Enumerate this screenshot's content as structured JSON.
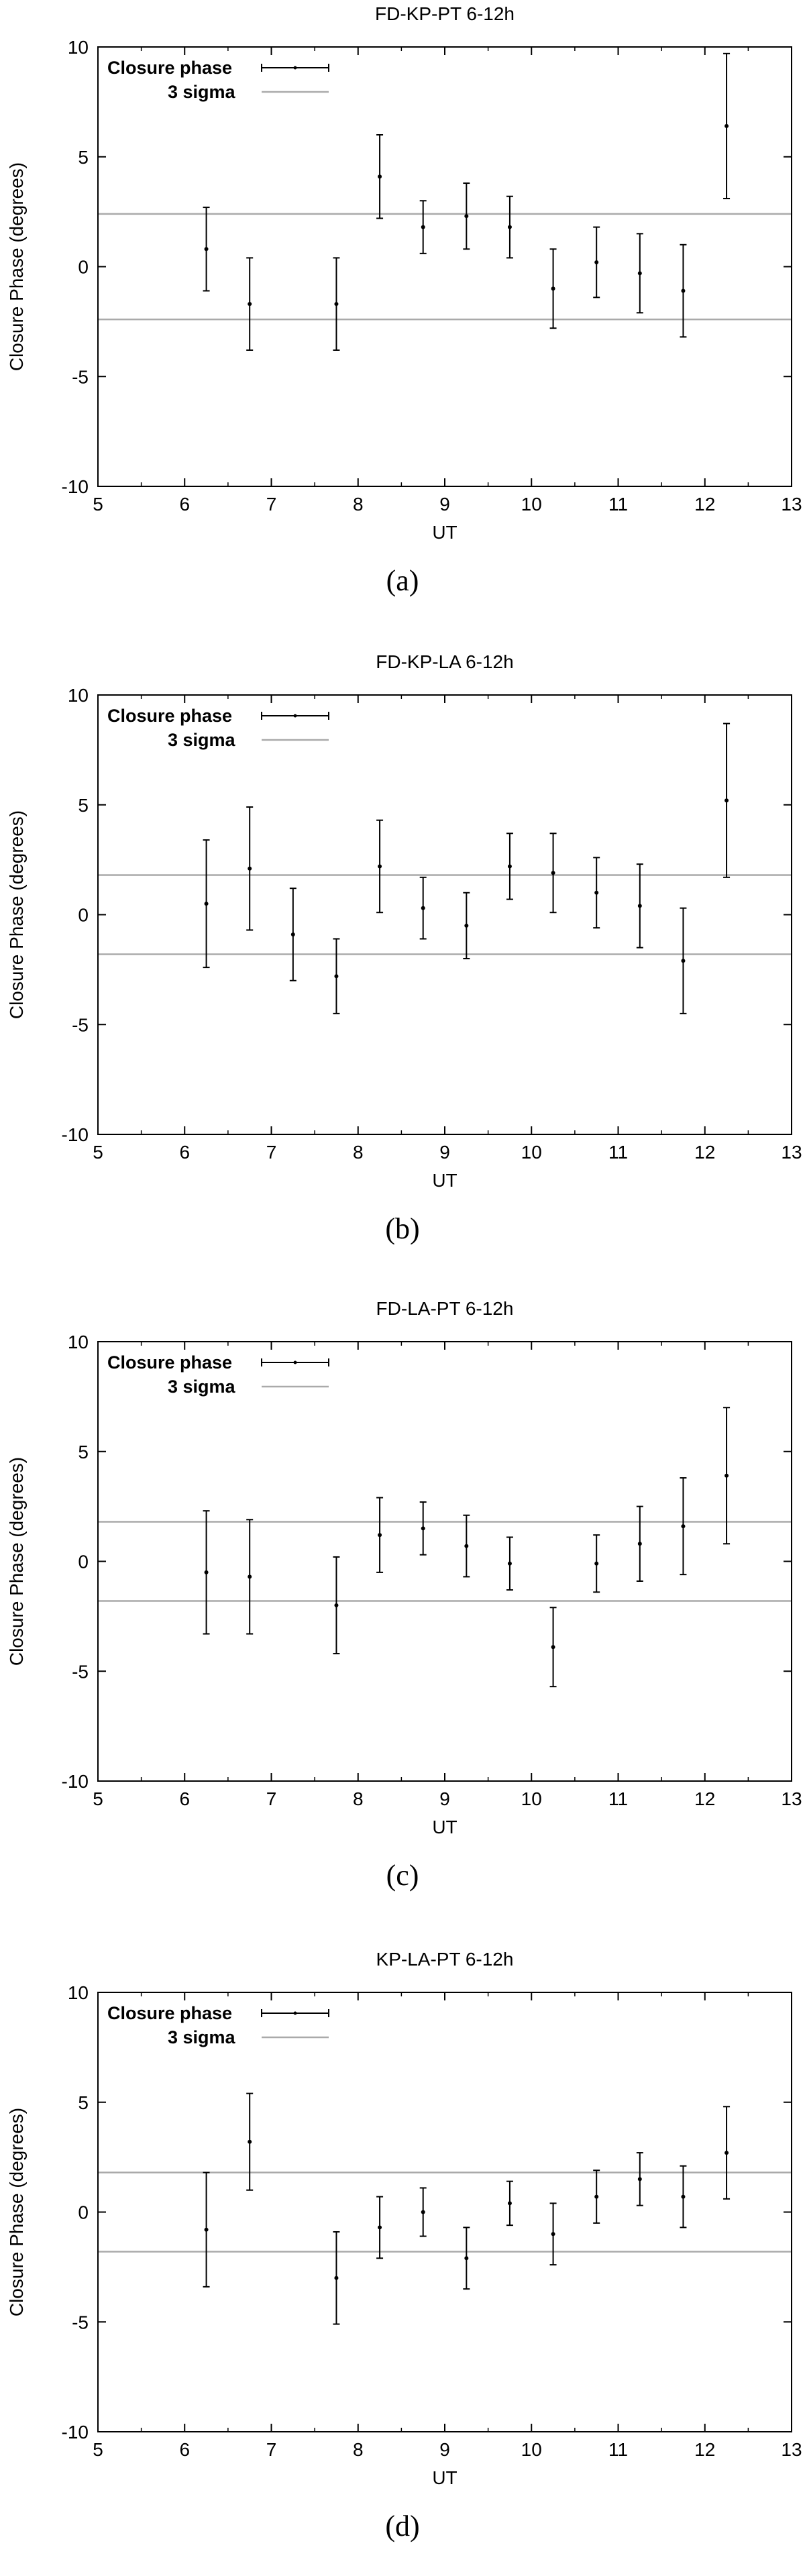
{
  "colors": {
    "axis": "#000000",
    "data": "#000000",
    "sigma_line": "#aaaaaa",
    "background": "#ffffff"
  },
  "legend_labels": {
    "data": "Closure phase",
    "sigma": "3 sigma"
  },
  "chart_data": [
    {
      "type": "scatter",
      "caption": "(a)",
      "title": "FD-KP-PT 6-12h",
      "xlabel": "UT",
      "ylabel": "Closure Phase (degrees)",
      "xlim": [
        5,
        13
      ],
      "ylim": [
        -10,
        10
      ],
      "xticks": [
        5,
        6,
        7,
        8,
        9,
        10,
        11,
        12,
        13
      ],
      "yticks": [
        -10,
        -5,
        0,
        5,
        10
      ],
      "legend_position": "top-left",
      "sigma_band": [
        -2.4,
        2.4
      ],
      "series": [
        {
          "name": "Closure phase",
          "x": [
            6.25,
            6.75,
            7.75,
            8.25,
            8.75,
            9.25,
            9.75,
            10.25,
            10.75,
            11.25,
            11.75,
            12.25
          ],
          "y": [
            0.8,
            -1.7,
            -1.7,
            4.1,
            1.8,
            2.3,
            1.8,
            -1.0,
            0.2,
            -0.3,
            -1.1,
            6.4
          ],
          "err": [
            1.9,
            2.1,
            2.1,
            1.9,
            1.2,
            1.5,
            1.4,
            1.8,
            1.6,
            1.8,
            2.1,
            3.3
          ]
        }
      ]
    },
    {
      "type": "scatter",
      "caption": "(b)",
      "title": "FD-KP-LA 6-12h",
      "xlabel": "UT",
      "ylabel": "Closure Phase (degrees)",
      "xlim": [
        5,
        13
      ],
      "ylim": [
        -10,
        10
      ],
      "xticks": [
        5,
        6,
        7,
        8,
        9,
        10,
        11,
        12,
        13
      ],
      "yticks": [
        -10,
        -5,
        0,
        5,
        10
      ],
      "legend_position": "top-left",
      "sigma_band": [
        -1.8,
        1.8
      ],
      "series": [
        {
          "name": "Closure phase",
          "x": [
            6.25,
            6.75,
            7.25,
            7.75,
            8.25,
            8.75,
            9.25,
            9.75,
            10.25,
            10.75,
            11.25,
            11.75,
            12.25
          ],
          "y": [
            0.5,
            2.1,
            -0.9,
            -2.8,
            2.2,
            0.3,
            -0.5,
            2.2,
            1.9,
            1.0,
            0.4,
            -2.1,
            5.2
          ],
          "err": [
            2.9,
            2.8,
            2.1,
            1.7,
            2.1,
            1.4,
            1.5,
            1.5,
            1.8,
            1.6,
            1.9,
            2.4,
            3.5
          ]
        }
      ]
    },
    {
      "type": "scatter",
      "caption": "(c)",
      "title": "FD-LA-PT 6-12h",
      "xlabel": "UT",
      "ylabel": "Closure Phase (degrees)",
      "xlim": [
        5,
        13
      ],
      "ylim": [
        -10,
        10
      ],
      "xticks": [
        5,
        6,
        7,
        8,
        9,
        10,
        11,
        12,
        13
      ],
      "yticks": [
        -10,
        -5,
        0,
        5,
        10
      ],
      "legend_position": "top-left",
      "sigma_band": [
        -1.8,
        1.8
      ],
      "series": [
        {
          "name": "Closure phase",
          "x": [
            6.25,
            6.75,
            7.75,
            8.25,
            8.75,
            9.25,
            9.75,
            10.25,
            10.75,
            11.25,
            11.75,
            12.25
          ],
          "y": [
            -0.5,
            -0.7,
            -2.0,
            1.2,
            1.5,
            0.7,
            -0.1,
            -3.9,
            -0.1,
            0.8,
            1.6,
            3.9
          ],
          "err": [
            2.8,
            2.6,
            2.2,
            1.7,
            1.2,
            1.4,
            1.2,
            1.8,
            1.3,
            1.7,
            2.2,
            3.1
          ]
        }
      ]
    },
    {
      "type": "scatter",
      "caption": "(d)",
      "title": "KP-LA-PT 6-12h",
      "xlabel": "UT",
      "ylabel": "Closure Phase (degrees)",
      "xlim": [
        5,
        13
      ],
      "ylim": [
        -10,
        10
      ],
      "xticks": [
        5,
        6,
        7,
        8,
        9,
        10,
        11,
        12,
        13
      ],
      "yticks": [
        -10,
        -5,
        0,
        5,
        10
      ],
      "legend_position": "top-left",
      "sigma_band": [
        -1.8,
        1.8
      ],
      "series": [
        {
          "name": "Closure phase",
          "x": [
            6.25,
            6.75,
            7.75,
            8.25,
            8.75,
            9.25,
            9.75,
            10.25,
            10.75,
            11.25,
            11.75,
            12.25
          ],
          "y": [
            -0.8,
            3.2,
            -3.0,
            -0.7,
            0.0,
            -2.1,
            0.4,
            -1.0,
            0.7,
            1.5,
            0.7,
            2.7
          ],
          "err": [
            2.6,
            2.2,
            2.1,
            1.4,
            1.1,
            1.4,
            1.0,
            1.4,
            1.2,
            1.2,
            1.4,
            2.1
          ]
        }
      ]
    }
  ]
}
